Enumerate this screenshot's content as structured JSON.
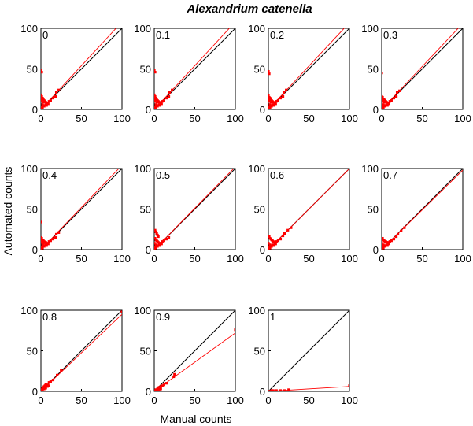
{
  "figure": {
    "title": "Alexandrium catenella",
    "xlabel": "Manual counts",
    "ylabel": "Automated counts"
  },
  "colors": {
    "data": "#ff0000",
    "identity": "#000000",
    "axes": "#000000"
  },
  "chart_data": [
    {
      "type": "scatter",
      "panel_label": "0",
      "xlim": [
        0,
        100
      ],
      "ylim": [
        0,
        100
      ],
      "xticks": [
        "0",
        "50",
        "100"
      ],
      "yticks": [
        "0",
        "50",
        "100"
      ],
      "fit": {
        "x": [
          0,
          100
        ],
        "y": [
          0,
          108
        ]
      },
      "identity": {
        "x": [
          0,
          100
        ],
        "y": [
          0,
          100
        ]
      },
      "points": [
        [
          0,
          48
        ],
        [
          1,
          46
        ],
        [
          0,
          18
        ],
        [
          1,
          16
        ],
        [
          2,
          14
        ],
        [
          3,
          13
        ],
        [
          4,
          11
        ],
        [
          5,
          10
        ],
        [
          6,
          9
        ],
        [
          8,
          8
        ],
        [
          10,
          10
        ],
        [
          12,
          11
        ],
        [
          15,
          14
        ],
        [
          18,
          16
        ],
        [
          19,
          21
        ],
        [
          22,
          24
        ],
        [
          2,
          6
        ],
        [
          3,
          5
        ],
        [
          1,
          3
        ],
        [
          0,
          1
        ],
        [
          2,
          2
        ],
        [
          4,
          4
        ],
        [
          6,
          6
        ],
        [
          0,
          10
        ],
        [
          1,
          12
        ],
        [
          3,
          9
        ],
        [
          7,
          5
        ],
        [
          9,
          7
        ]
      ]
    },
    {
      "type": "scatter",
      "panel_label": "0.1",
      "xlim": [
        0,
        100
      ],
      "ylim": [
        0,
        100
      ],
      "xticks": [
        "0",
        "50",
        "100"
      ],
      "yticks": [
        "0",
        "50",
        "100"
      ],
      "fit": {
        "x": [
          0,
          100
        ],
        "y": [
          0,
          108
        ]
      },
      "identity": {
        "x": [
          0,
          100
        ],
        "y": [
          0,
          100
        ]
      },
      "points": [
        [
          0,
          48
        ],
        [
          1,
          46
        ],
        [
          0,
          18
        ],
        [
          1,
          16
        ],
        [
          2,
          14
        ],
        [
          3,
          13
        ],
        [
          4,
          11
        ],
        [
          5,
          10
        ],
        [
          6,
          9
        ],
        [
          8,
          8
        ],
        [
          10,
          10
        ],
        [
          12,
          11
        ],
        [
          15,
          14
        ],
        [
          18,
          16
        ],
        [
          19,
          21
        ],
        [
          22,
          24
        ],
        [
          2,
          6
        ],
        [
          3,
          5
        ],
        [
          1,
          3
        ],
        [
          0,
          1
        ],
        [
          2,
          2
        ],
        [
          4,
          4
        ],
        [
          6,
          6
        ],
        [
          0,
          10
        ],
        [
          1,
          12
        ],
        [
          3,
          9
        ],
        [
          7,
          5
        ],
        [
          9,
          7
        ]
      ]
    },
    {
      "type": "scatter",
      "panel_label": "0.2",
      "xlim": [
        0,
        100
      ],
      "ylim": [
        0,
        100
      ],
      "xticks": [
        "0",
        "50",
        "100"
      ],
      "yticks": [
        "0",
        "50",
        "100"
      ],
      "fit": {
        "x": [
          0,
          100
        ],
        "y": [
          0,
          107
        ]
      },
      "identity": {
        "x": [
          0,
          100
        ],
        "y": [
          0,
          100
        ]
      },
      "points": [
        [
          0,
          47
        ],
        [
          1,
          44
        ],
        [
          0,
          17
        ],
        [
          1,
          15
        ],
        [
          2,
          14
        ],
        [
          3,
          12
        ],
        [
          4,
          11
        ],
        [
          5,
          10
        ],
        [
          6,
          9
        ],
        [
          8,
          8
        ],
        [
          10,
          10
        ],
        [
          12,
          11
        ],
        [
          15,
          14
        ],
        [
          18,
          16
        ],
        [
          19,
          21
        ],
        [
          22,
          24
        ],
        [
          2,
          6
        ],
        [
          3,
          5
        ],
        [
          1,
          3
        ],
        [
          0,
          1
        ],
        [
          2,
          2
        ],
        [
          4,
          4
        ],
        [
          6,
          6
        ],
        [
          0,
          10
        ],
        [
          1,
          12
        ],
        [
          3,
          9
        ],
        [
          7,
          5
        ],
        [
          9,
          7
        ]
      ]
    },
    {
      "type": "scatter",
      "panel_label": "0.3",
      "xlim": [
        0,
        100
      ],
      "ylim": [
        0,
        100
      ],
      "xticks": [
        "0",
        "50",
        "100"
      ],
      "yticks": [
        "0",
        "50",
        "100"
      ],
      "fit": {
        "x": [
          0,
          100
        ],
        "y": [
          0,
          106
        ]
      },
      "identity": {
        "x": [
          0,
          100
        ],
        "y": [
          0,
          100
        ]
      },
      "points": [
        [
          0,
          45
        ],
        [
          0,
          16
        ],
        [
          1,
          15
        ],
        [
          2,
          13
        ],
        [
          3,
          12
        ],
        [
          4,
          11
        ],
        [
          5,
          10
        ],
        [
          6,
          9
        ],
        [
          8,
          8
        ],
        [
          10,
          10
        ],
        [
          12,
          11
        ],
        [
          15,
          14
        ],
        [
          18,
          16
        ],
        [
          19,
          21
        ],
        [
          22,
          23
        ],
        [
          2,
          6
        ],
        [
          3,
          5
        ],
        [
          1,
          3
        ],
        [
          0,
          1
        ],
        [
          2,
          2
        ],
        [
          4,
          4
        ],
        [
          6,
          6
        ],
        [
          0,
          10
        ],
        [
          1,
          12
        ],
        [
          3,
          9
        ],
        [
          7,
          5
        ],
        [
          9,
          7
        ]
      ]
    },
    {
      "type": "scatter",
      "panel_label": "0.4",
      "xlim": [
        0,
        100
      ],
      "ylim": [
        0,
        100
      ],
      "xticks": [
        "0",
        "50",
        "100"
      ],
      "yticks": [
        "0",
        "50",
        "100"
      ],
      "fit": {
        "x": [
          0,
          100
        ],
        "y": [
          0,
          104
        ]
      },
      "identity": {
        "x": [
          0,
          100
        ],
        "y": [
          0,
          100
        ]
      },
      "points": [
        [
          0,
          34
        ],
        [
          0,
          15
        ],
        [
          1,
          14
        ],
        [
          2,
          12
        ],
        [
          3,
          11
        ],
        [
          4,
          10
        ],
        [
          5,
          9
        ],
        [
          6,
          9
        ],
        [
          8,
          8
        ],
        [
          10,
          10
        ],
        [
          12,
          11
        ],
        [
          15,
          13
        ],
        [
          18,
          15
        ],
        [
          19,
          19
        ],
        [
          22,
          21
        ],
        [
          2,
          6
        ],
        [
          3,
          5
        ],
        [
          1,
          3
        ],
        [
          0,
          1
        ],
        [
          2,
          2
        ],
        [
          4,
          4
        ],
        [
          6,
          6
        ],
        [
          0,
          9
        ],
        [
          1,
          11
        ],
        [
          3,
          8
        ],
        [
          7,
          5
        ],
        [
          9,
          7
        ]
      ]
    },
    {
      "type": "scatter",
      "panel_label": "0.5",
      "xlim": [
        0,
        100
      ],
      "ylim": [
        0,
        100
      ],
      "xticks": [
        "0",
        "50",
        "100"
      ],
      "yticks": [
        "0",
        "50",
        "100"
      ],
      "fit": {
        "x": [
          0,
          100
        ],
        "y": [
          0,
          102
        ]
      },
      "identity": {
        "x": [
          0,
          100
        ],
        "y": [
          0,
          100
        ]
      },
      "points": [
        [
          1,
          24
        ],
        [
          2,
          22
        ],
        [
          3,
          20
        ],
        [
          4,
          18
        ],
        [
          5,
          16
        ],
        [
          1,
          14
        ],
        [
          2,
          12
        ],
        [
          3,
          11
        ],
        [
          4,
          10
        ],
        [
          5,
          9
        ],
        [
          6,
          8
        ],
        [
          8,
          8
        ],
        [
          10,
          10
        ],
        [
          12,
          11
        ],
        [
          15,
          13
        ],
        [
          18,
          15
        ],
        [
          2,
          6
        ],
        [
          3,
          5
        ],
        [
          1,
          3
        ],
        [
          0,
          1
        ],
        [
          2,
          2
        ],
        [
          4,
          4
        ],
        [
          6,
          6
        ],
        [
          0,
          8
        ],
        [
          7,
          5
        ],
        [
          9,
          7
        ]
      ]
    },
    {
      "type": "scatter",
      "panel_label": "0.6",
      "xlim": [
        0,
        100
      ],
      "ylim": [
        0,
        100
      ],
      "xticks": [
        "0",
        "50",
        "100"
      ],
      "yticks": [
        "0",
        "50",
        "100"
      ],
      "fit": {
        "x": [
          0,
          100
        ],
        "y": [
          0,
          100
        ]
      },
      "identity": {
        "x": [
          0,
          100
        ],
        "y": [
          0,
          100
        ]
      },
      "points": [
        [
          1,
          16
        ],
        [
          2,
          14
        ],
        [
          3,
          13
        ],
        [
          4,
          12
        ],
        [
          5,
          11
        ],
        [
          6,
          10
        ],
        [
          8,
          9
        ],
        [
          10,
          10
        ],
        [
          12,
          11
        ],
        [
          15,
          13
        ],
        [
          18,
          17
        ],
        [
          20,
          20
        ],
        [
          24,
          24
        ],
        [
          28,
          27
        ],
        [
          2,
          6
        ],
        [
          3,
          5
        ],
        [
          1,
          3
        ],
        [
          0,
          1
        ],
        [
          2,
          2
        ],
        [
          4,
          4
        ],
        [
          6,
          6
        ],
        [
          0,
          8
        ],
        [
          7,
          5
        ],
        [
          9,
          7
        ]
      ]
    },
    {
      "type": "scatter",
      "panel_label": "0.7",
      "xlim": [
        0,
        100
      ],
      "ylim": [
        0,
        100
      ],
      "xticks": [
        "0",
        "50",
        "100"
      ],
      "yticks": [
        "0",
        "50",
        "100"
      ],
      "fit": {
        "x": [
          0,
          100
        ],
        "y": [
          0,
          98
        ]
      },
      "identity": {
        "x": [
          0,
          100
        ],
        "y": [
          0,
          100
        ]
      },
      "points": [
        [
          1,
          14
        ],
        [
          2,
          12
        ],
        [
          3,
          11
        ],
        [
          4,
          10
        ],
        [
          5,
          10
        ],
        [
          6,
          9
        ],
        [
          8,
          9
        ],
        [
          10,
          10
        ],
        [
          12,
          11
        ],
        [
          15,
          13
        ],
        [
          18,
          16
        ],
        [
          20,
          19
        ],
        [
          24,
          23
        ],
        [
          28,
          27
        ],
        [
          2,
          6
        ],
        [
          3,
          5
        ],
        [
          1,
          3
        ],
        [
          0,
          1
        ],
        [
          2,
          2
        ],
        [
          4,
          4
        ],
        [
          6,
          6
        ],
        [
          0,
          8
        ],
        [
          7,
          5
        ],
        [
          9,
          7
        ]
      ]
    },
    {
      "type": "scatter",
      "panel_label": "0.8",
      "xlim": [
        0,
        100
      ],
      "ylim": [
        0,
        100
      ],
      "xticks": [
        "0",
        "50",
        "100"
      ],
      "yticks": [
        "0",
        "50",
        "100"
      ],
      "fit": {
        "x": [
          0,
          100
        ],
        "y": [
          0,
          95
        ]
      },
      "identity": {
        "x": [
          0,
          100
        ],
        "y": [
          0,
          100
        ]
      },
      "points": [
        [
          100,
          98
        ],
        [
          25,
          26
        ],
        [
          20,
          20
        ],
        [
          15,
          14
        ],
        [
          12,
          12
        ],
        [
          10,
          11
        ],
        [
          8,
          8
        ],
        [
          6,
          9
        ],
        [
          5,
          7
        ],
        [
          4,
          6
        ],
        [
          3,
          5
        ],
        [
          2,
          4
        ],
        [
          1,
          2
        ],
        [
          0,
          1
        ],
        [
          2,
          1
        ],
        [
          4,
          3
        ],
        [
          6,
          4
        ],
        [
          8,
          6
        ],
        [
          10,
          7
        ]
      ]
    },
    {
      "type": "scatter",
      "panel_label": "0.9",
      "xlim": [
        0,
        100
      ],
      "ylim": [
        0,
        100
      ],
      "xticks": [
        "0",
        "50",
        "100"
      ],
      "yticks": [
        "0",
        "50",
        "100"
      ],
      "fit": {
        "x": [
          0,
          100
        ],
        "y": [
          0,
          72
        ]
      },
      "identity": {
        "x": [
          0,
          100
        ],
        "y": [
          0,
          100
        ]
      },
      "points": [
        [
          100,
          76
        ],
        [
          25,
          21
        ],
        [
          24,
          18
        ],
        [
          15,
          10
        ],
        [
          12,
          8
        ],
        [
          10,
          7
        ],
        [
          8,
          6
        ],
        [
          6,
          5
        ],
        [
          5,
          4
        ],
        [
          4,
          3
        ],
        [
          3,
          2
        ],
        [
          2,
          2
        ],
        [
          1,
          1
        ],
        [
          0,
          0
        ],
        [
          2,
          0
        ],
        [
          4,
          1
        ],
        [
          6,
          2
        ],
        [
          8,
          3
        ]
      ]
    },
    {
      "type": "scatter",
      "panel_label": "1",
      "xlim": [
        0,
        100
      ],
      "ylim": [
        0,
        100
      ],
      "xticks": [
        "0",
        "50",
        "100"
      ],
      "yticks": [
        "0",
        "50",
        "100"
      ],
      "fit": {
        "x": [
          0,
          100
        ],
        "y": [
          0,
          6
        ]
      },
      "identity": {
        "x": [
          0,
          100
        ],
        "y": [
          0,
          100
        ]
      },
      "points": [
        [
          100,
          7
        ],
        [
          25,
          2
        ],
        [
          20,
          1
        ],
        [
          15,
          1
        ],
        [
          10,
          1
        ],
        [
          8,
          0
        ],
        [
          6,
          1
        ],
        [
          5,
          0
        ],
        [
          4,
          1
        ],
        [
          3,
          0
        ],
        [
          2,
          0
        ],
        [
          1,
          0
        ],
        [
          0,
          0
        ]
      ]
    }
  ]
}
